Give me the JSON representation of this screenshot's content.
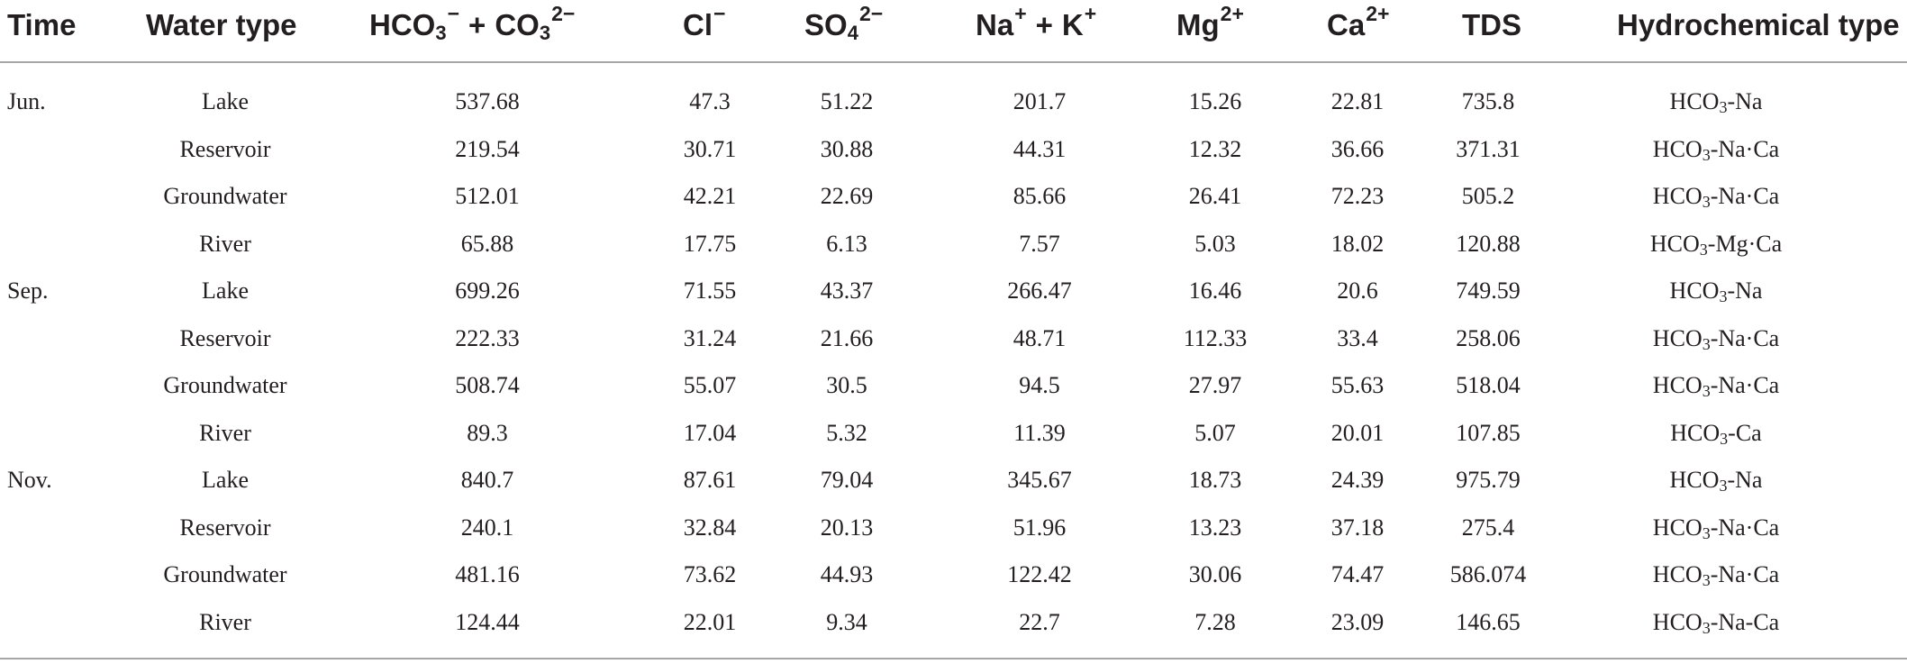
{
  "table": {
    "headers": {
      "time": "Time",
      "water_type": "Water type",
      "hco3_co3": {
        "hco3": "HCO",
        "hco3_sub": "3",
        "hco3_charge": "−",
        "plus": "+",
        "co3": "CO",
        "co3_sub": "3",
        "co3_charge": "2−"
      },
      "cl": {
        "base": "Cl",
        "charge": "−"
      },
      "so4": {
        "base": "SO",
        "sub": "4",
        "charge": "2−"
      },
      "na_k": {
        "na": "Na",
        "na_charge": "+",
        "plus": "+",
        "k": "K",
        "k_charge": "+"
      },
      "mg": {
        "base": "Mg",
        "charge": "2+"
      },
      "ca": {
        "base": "Ca",
        "charge": "2+"
      },
      "tds": "TDS",
      "hydrochemical_type": "Hydrochemical type"
    },
    "rows": [
      {
        "time": "Jun.",
        "water_type": "Lake",
        "hco3_co3": "537.68",
        "cl": "47.3",
        "so4": "51.22",
        "na_k": "201.7",
        "mg": "15.26",
        "ca": "22.81",
        "tds": "735.8",
        "htype_pre": "HCO",
        "htype_sub": "3",
        "htype_post": "-Na"
      },
      {
        "time": "",
        "water_type": "Reservoir",
        "hco3_co3": "219.54",
        "cl": "30.71",
        "so4": "30.88",
        "na_k": "44.31",
        "mg": "12.32",
        "ca": "36.66",
        "tds": "371.31",
        "htype_pre": "HCO",
        "htype_sub": "3",
        "htype_post": "-Na·Ca"
      },
      {
        "time": "",
        "water_type": "Groundwater",
        "hco3_co3": "512.01",
        "cl": "42.21",
        "so4": "22.69",
        "na_k": "85.66",
        "mg": "26.41",
        "ca": "72.23",
        "tds": "505.2",
        "htype_pre": "HCO",
        "htype_sub": "3",
        "htype_post": "-Na·Ca"
      },
      {
        "time": "",
        "water_type": "River",
        "hco3_co3": "65.88",
        "cl": "17.75",
        "so4": "6.13",
        "na_k": "7.57",
        "mg": "5.03",
        "ca": "18.02",
        "tds": "120.88",
        "htype_pre": "HCO",
        "htype_sub": "3",
        "htype_post": "-Mg·Ca"
      },
      {
        "time": "Sep.",
        "water_type": "Lake",
        "hco3_co3": "699.26",
        "cl": "71.55",
        "so4": "43.37",
        "na_k": "266.47",
        "mg": "16.46",
        "ca": "20.6",
        "tds": "749.59",
        "htype_pre": "HCO",
        "htype_sub": "3",
        "htype_post": "-Na"
      },
      {
        "time": "",
        "water_type": "Reservoir",
        "hco3_co3": "222.33",
        "cl": "31.24",
        "so4": "21.66",
        "na_k": "48.71",
        "mg": "112.33",
        "ca": "33.4",
        "tds": "258.06",
        "htype_pre": "HCO",
        "htype_sub": "3",
        "htype_post": "-Na·Ca"
      },
      {
        "time": "",
        "water_type": "Groundwater",
        "hco3_co3": "508.74",
        "cl": "55.07",
        "so4": "30.5",
        "na_k": "94.5",
        "mg": "27.97",
        "ca": "55.63",
        "tds": "518.04",
        "htype_pre": "HCO",
        "htype_sub": "3",
        "htype_post": "-Na·Ca"
      },
      {
        "time": "",
        "water_type": "River",
        "hco3_co3": "89.3",
        "cl": "17.04",
        "so4": "5.32",
        "na_k": "11.39",
        "mg": "5.07",
        "ca": "20.01",
        "tds": "107.85",
        "htype_pre": "HCO",
        "htype_sub": "3",
        "htype_post": "-Ca"
      },
      {
        "time": "Nov.",
        "water_type": "Lake",
        "hco3_co3": "840.7",
        "cl": "87.61",
        "so4": "79.04",
        "na_k": "345.67",
        "mg": "18.73",
        "ca": "24.39",
        "tds": "975.79",
        "htype_pre": "HCO",
        "htype_sub": "3",
        "htype_post": "-Na"
      },
      {
        "time": "",
        "water_type": "Reservoir",
        "hco3_co3": "240.1",
        "cl": "32.84",
        "so4": "20.13",
        "na_k": "51.96",
        "mg": "13.23",
        "ca": "37.18",
        "tds": "275.4",
        "htype_pre": "HCO",
        "htype_sub": "3",
        "htype_post": "-Na·Ca"
      },
      {
        "time": "",
        "water_type": "Groundwater",
        "hco3_co3": "481.16",
        "cl": "73.62",
        "so4": "44.93",
        "na_k": "122.42",
        "mg": "30.06",
        "ca": "74.47",
        "tds": "586.074",
        "htype_pre": "HCO",
        "htype_sub": "3",
        "htype_post": "-Na·Ca"
      },
      {
        "time": "",
        "water_type": "River",
        "hco3_co3": "124.44",
        "cl": "22.01",
        "so4": "9.34",
        "na_k": "22.7",
        "mg": "7.28",
        "ca": "23.09",
        "tds": "146.65",
        "htype_pre": "HCO",
        "htype_sub": "3",
        "htype_post": "-Na-Ca"
      }
    ]
  }
}
